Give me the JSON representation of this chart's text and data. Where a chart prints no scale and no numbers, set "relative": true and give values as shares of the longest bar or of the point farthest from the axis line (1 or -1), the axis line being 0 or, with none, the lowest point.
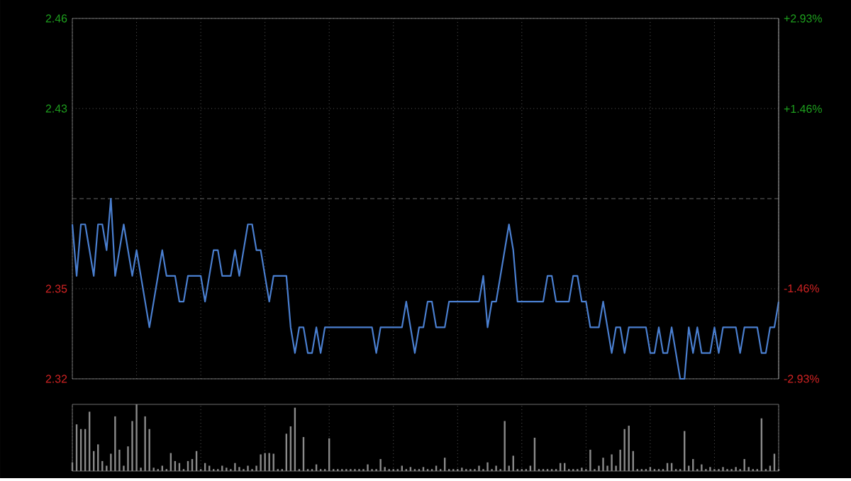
{
  "chart_data": [
    {
      "type": "line",
      "categories": [
        null,
        null,
        null,
        null,
        null,
        null,
        null,
        null,
        null,
        null,
        null,
        null,
        null,
        null,
        null,
        null,
        null,
        null,
        null,
        null,
        null,
        null,
        null,
        null,
        null,
        null,
        null,
        null,
        null,
        null,
        null,
        null,
        null,
        null,
        null,
        null,
        null,
        null,
        null,
        null,
        null,
        null,
        null,
        null,
        null,
        null,
        null,
        null,
        null,
        null,
        null,
        null,
        null,
        null,
        null,
        null,
        null,
        null,
        null,
        null,
        null,
        null,
        null,
        null,
        null,
        null,
        null,
        null,
        null,
        null,
        null,
        null,
        null,
        null,
        null,
        null,
        null,
        null,
        null,
        null,
        null,
        null,
        null,
        null,
        null,
        null,
        null,
        null,
        null,
        null,
        null,
        null,
        null,
        null,
        null,
        null,
        null,
        null,
        null,
        null,
        null,
        null,
        null,
        null,
        null,
        null,
        null,
        null,
        null,
        null,
        null,
        null,
        null,
        null,
        null,
        null,
        null,
        null,
        null,
        null,
        null,
        null,
        null,
        null,
        null,
        null,
        null,
        null,
        null,
        null,
        null,
        null,
        null,
        null,
        null,
        null,
        null,
        null,
        null,
        null,
        null,
        null,
        null,
        null,
        null,
        null,
        null,
        null,
        null,
        null,
        null,
        null,
        null,
        null,
        null,
        null,
        null,
        null,
        null,
        null,
        null,
        null,
        null,
        null,
        null,
        null
      ],
      "ylim": [
        2.32,
        2.46
      ],
      "yticks": [
        2.46,
        {
          "value": 2.425,
          "label": "2.43"
        },
        {
          "value": 2.355,
          "label": "2.35"
        },
        2.32
      ],
      "y2lim": [
        -2.93,
        2.93
      ],
      "y2ticks": [
        {
          "value": 2.93,
          "label": "+2.93%"
        },
        {
          "value": 1.46,
          "label": "+1.46%"
        },
        {
          "value": -1.46,
          "label": "-1.46%"
        },
        {
          "value": -2.93,
          "label": "-2.93%"
        }
      ],
      "tick_labels": "y",
      "grid": true,
      "ref_lines": [
        {
          "axis": "y",
          "value": 2.39,
          "color": "#808080",
          "line_style": "dashed"
        }
      ],
      "series": [
        {
          "color": "#4a7fd0",
          "values": [
            2.38,
            2.36,
            2.38,
            2.38,
            2.37,
            2.36,
            2.38,
            2.38,
            2.37,
            2.39,
            2.36,
            2.37,
            2.38,
            2.37,
            2.36,
            2.37,
            2.36,
            2.35,
            2.34,
            2.35,
            2.36,
            2.37,
            2.36,
            2.36,
            2.36,
            2.35,
            2.35,
            2.36,
            2.36,
            2.36,
            2.36,
            2.35,
            2.36,
            2.37,
            2.37,
            2.36,
            2.36,
            2.36,
            2.37,
            2.36,
            2.37,
            2.38,
            2.38,
            2.37,
            2.37,
            2.36,
            2.35,
            2.36,
            2.36,
            2.36,
            2.36,
            2.34,
            2.33,
            2.34,
            2.34,
            2.33,
            2.33,
            2.34,
            2.33,
            2.34,
            2.34,
            2.34,
            2.34,
            2.34,
            2.34,
            2.34,
            2.34,
            2.34,
            2.34,
            2.34,
            2.34,
            2.33,
            2.34,
            2.34,
            2.34,
            2.34,
            2.34,
            2.34,
            2.35,
            2.34,
            2.33,
            2.34,
            2.34,
            2.35,
            2.35,
            2.34,
            2.34,
            2.34,
            2.35,
            2.35,
            2.35,
            2.35,
            2.35,
            2.35,
            2.35,
            2.35,
            2.36,
            2.34,
            2.35,
            2.35,
            2.36,
            2.37,
            2.38,
            2.37,
            2.35,
            2.35,
            2.35,
            2.35,
            2.35,
            2.35,
            2.35,
            2.36,
            2.36,
            2.35,
            2.35,
            2.35,
            2.35,
            2.36,
            2.36,
            2.35,
            2.35,
            2.34,
            2.34,
            2.34,
            2.35,
            2.34,
            2.33,
            2.34,
            2.34,
            2.33,
            2.34,
            2.34,
            2.34,
            2.34,
            2.34,
            2.33,
            2.33,
            2.34,
            2.33,
            2.33,
            2.34,
            2.33,
            2.32,
            2.32,
            2.34,
            2.33,
            2.34,
            2.33,
            2.33,
            2.33,
            2.34,
            2.33,
            2.34,
            2.34,
            2.34,
            2.34,
            2.33,
            2.34,
            2.34,
            2.34,
            2.34,
            2.33,
            2.33,
            2.34,
            2.34,
            2.35
          ]
        }
      ]
    },
    {
      "type": "bar",
      "relative": true,
      "categories": [
        null,
        null,
        null,
        null,
        null,
        null,
        null,
        null,
        null,
        null,
        null,
        null,
        null,
        null,
        null,
        null,
        null,
        null,
        null,
        null,
        null,
        null,
        null,
        null,
        null,
        null,
        null,
        null,
        null,
        null,
        null,
        null,
        null,
        null,
        null,
        null,
        null,
        null,
        null,
        null,
        null,
        null,
        null,
        null,
        null,
        null,
        null,
        null,
        null,
        null,
        null,
        null,
        null,
        null,
        null,
        null,
        null,
        null,
        null,
        null,
        null,
        null,
        null,
        null,
        null,
        null,
        null,
        null,
        null,
        null,
        null,
        null,
        null,
        null,
        null,
        null,
        null,
        null,
        null,
        null,
        null,
        null,
        null,
        null,
        null,
        null,
        null,
        null,
        null,
        null,
        null,
        null,
        null,
        null,
        null,
        null,
        null,
        null,
        null,
        null,
        null,
        null,
        null,
        null,
        null,
        null,
        null,
        null,
        null,
        null,
        null,
        null,
        null,
        null,
        null,
        null,
        null,
        null,
        null,
        null,
        null,
        null,
        null,
        null,
        null,
        null,
        null,
        null,
        null,
        null,
        null,
        null,
        null,
        null,
        null,
        null,
        null,
        null,
        null,
        null,
        null,
        null,
        null,
        null,
        null,
        null,
        null,
        null,
        null,
        null,
        null,
        null,
        null,
        null,
        null,
        null,
        null,
        null,
        null,
        null,
        null,
        null,
        null,
        null,
        null,
        null
      ],
      "tick_labels": false,
      "grid": "x",
      "series": [
        {
          "color": "#8a8a8a",
          "values": [
            0.13,
            0.7,
            0.63,
            0.63,
            0.89,
            0.3,
            0.4,
            0.15,
            0.08,
            0.26,
            0.82,
            0.32,
            0.08,
            0.37,
            0.75,
            1,
            0.05,
            0.82,
            0.63,
            0.05,
            0.03,
            0.08,
            0.03,
            0.27,
            0.15,
            0.12,
            0.03,
            0.15,
            0.18,
            0.3,
            0.03,
            0.12,
            0.08,
            0.03,
            0.03,
            0.08,
            0.05,
            0.03,
            0.12,
            0.06,
            0.03,
            0.08,
            0.03,
            0.08,
            0.25,
            0.27,
            0.27,
            0.26,
            0.03,
            0.03,
            0.56,
            0.67,
            0.95,
            0.03,
            0.51,
            0.03,
            0.03,
            0.1,
            0.03,
            0.03,
            0.49,
            0.03,
            0.03,
            0.03,
            0.03,
            0.03,
            0.03,
            0.03,
            0.03,
            0.1,
            0.03,
            0.03,
            0.18,
            0.06,
            0.03,
            0.03,
            0.03,
            0.08,
            0.03,
            0.06,
            0.03,
            0.03,
            0.06,
            0.03,
            0.03,
            0.08,
            0.03,
            0.2,
            0.03,
            0.03,
            0.03,
            0.05,
            0.03,
            0.03,
            0.03,
            0.08,
            0.03,
            0.13,
            0.03,
            0.08,
            0.03,
            0.75,
            0.08,
            0.23,
            0.03,
            0.03,
            0.03,
            0.08,
            0.5,
            0.03,
            0.03,
            0.03,
            0.03,
            0.03,
            0.12,
            0.12,
            0.03,
            0.03,
            0.03,
            0.05,
            0.03,
            0.32,
            0.03,
            0.08,
            0.2,
            0.08,
            0.25,
            0.08,
            0.32,
            0.63,
            0.68,
            0.3,
            0.03,
            0.03,
            0.03,
            0.06,
            0.03,
            0.03,
            0.03,
            0.12,
            0.12,
            0.03,
            0.03,
            0.6,
            0.08,
            0.18,
            0.03,
            0.1,
            0.03,
            0.06,
            0.03,
            0.03,
            0.06,
            0.03,
            0.03,
            0.06,
            0.03,
            0.18,
            0.06,
            0.03,
            0.03,
            0.79,
            0.03,
            0.08,
            0.26,
            0.03
          ]
        }
      ]
    }
  ]
}
